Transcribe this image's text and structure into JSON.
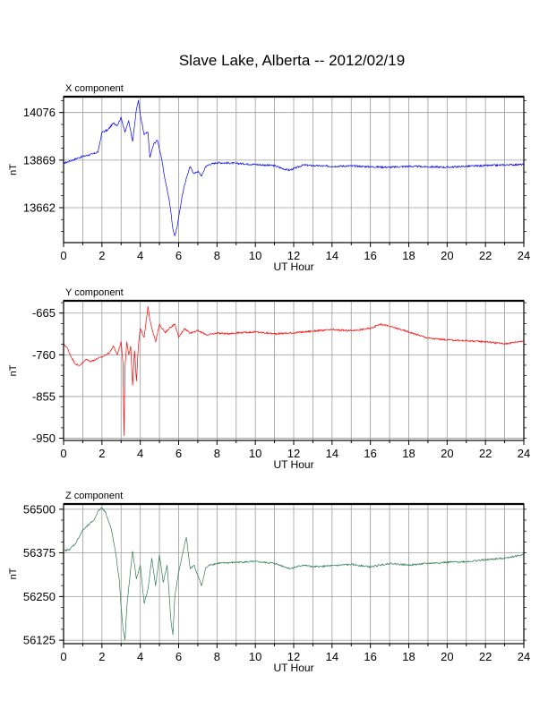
{
  "title": "Slave Lake, Alberta -- 2012/02/19",
  "chart_data": [
    {
      "type": "line",
      "title": "X component",
      "xlabel": "UT Hour",
      "ylabel": "nT",
      "color": "#0000ff",
      "xlim": [
        0,
        24
      ],
      "ylim": [
        13510,
        14145
      ],
      "xticks": [
        "0",
        "2",
        "4",
        "6",
        "8",
        "10",
        "12",
        "14",
        "16",
        "18",
        "20",
        "22",
        "24"
      ],
      "yticks": [
        13662,
        13869,
        14076
      ],
      "grid": true,
      "x": [
        0,
        0.5,
        0.8,
        1.0,
        1.5,
        1.8,
        2.0,
        2.3,
        2.6,
        2.8,
        3.0,
        3.2,
        3.4,
        3.6,
        3.8,
        3.9,
        4.0,
        4.2,
        4.4,
        4.5,
        4.7,
        4.9,
        5.1,
        5.3,
        5.5,
        5.6,
        5.7,
        5.8,
        5.9,
        6.0,
        6.2,
        6.4,
        6.6,
        6.8,
        7.0,
        7.2,
        7.4,
        7.6,
        8.0,
        9,
        10,
        11,
        11.5,
        11.8,
        12.5,
        13,
        14,
        15,
        16,
        17,
        18,
        19,
        20,
        21,
        22,
        23,
        24
      ],
      "y": [
        13855,
        13870,
        13880,
        13885,
        13895,
        13905,
        13990,
        14000,
        14030,
        14020,
        14055,
        13990,
        14040,
        13950,
        14090,
        14130,
        14065,
        13980,
        13990,
        13880,
        13940,
        13955,
        13880,
        13780,
        13700,
        13640,
        13570,
        13540,
        13570,
        13620,
        13720,
        13790,
        13840,
        13810,
        13820,
        13800,
        13840,
        13850,
        13858,
        13855,
        13850,
        13845,
        13830,
        13825,
        13848,
        13845,
        13842,
        13844,
        13840,
        13838,
        13842,
        13840,
        13838,
        13842,
        13845,
        13848,
        13850
      ]
    },
    {
      "type": "line",
      "title": "Y component",
      "xlabel": "UT Hour",
      "ylabel": "nT",
      "color": "#ff0000",
      "xlim": [
        0,
        24
      ],
      "ylim": [
        -955,
        -637
      ],
      "xticks": [
        "0",
        "2",
        "4",
        "6",
        "8",
        "10",
        "12",
        "14",
        "16",
        "18",
        "20",
        "22",
        "24"
      ],
      "yticks": [
        -950,
        -855,
        -760,
        -665
      ],
      "grid": true,
      "x": [
        0,
        0.2,
        0.4,
        0.6,
        0.8,
        1.0,
        1.2,
        1.4,
        1.6,
        1.8,
        2.0,
        2.2,
        2.4,
        2.6,
        2.8,
        3.0,
        3.1,
        3.15,
        3.2,
        3.3,
        3.4,
        3.5,
        3.6,
        3.7,
        3.8,
        3.9,
        4.0,
        4.2,
        4.4,
        4.5,
        4.6,
        4.8,
        5.0,
        5.3,
        5.5,
        5.8,
        6.0,
        6.3,
        6.6,
        7.0,
        7.5,
        8.0,
        8.5,
        9,
        10,
        11,
        12,
        13,
        14,
        15,
        16,
        16.5,
        17,
        18,
        19,
        20,
        21,
        22,
        23,
        24
      ],
      "y": [
        -735,
        -745,
        -765,
        -780,
        -785,
        -778,
        -770,
        -775,
        -772,
        -768,
        -765,
        -760,
        -755,
        -740,
        -760,
        -730,
        -780,
        -945,
        -790,
        -730,
        -760,
        -740,
        -830,
        -750,
        -820,
        -740,
        -700,
        -720,
        -650,
        -680,
        -700,
        -730,
        -690,
        -710,
        -700,
        -690,
        -720,
        -700,
        -710,
        -705,
        -715,
        -710,
        -712,
        -710,
        -708,
        -712,
        -710,
        -706,
        -703,
        -705,
        -700,
        -690,
        -695,
        -708,
        -722,
        -726,
        -728,
        -730,
        -735,
        -728
      ]
    },
    {
      "type": "line",
      "title": "Z component",
      "xlabel": "UT Hour",
      "ylabel": "nT",
      "color": "#2e7d4f",
      "xlim": [
        0,
        24
      ],
      "ylim": [
        56115,
        56515
      ],
      "xticks": [
        "0",
        "2",
        "4",
        "6",
        "8",
        "10",
        "12",
        "14",
        "16",
        "18",
        "20",
        "22",
        "24"
      ],
      "yticks": [
        56125,
        56250,
        56375,
        56500
      ],
      "grid": true,
      "x": [
        0,
        0.3,
        0.6,
        1.0,
        1.3,
        1.6,
        1.8,
        2.0,
        2.2,
        2.5,
        2.7,
        2.9,
        3.0,
        3.1,
        3.2,
        3.3,
        3.5,
        3.6,
        3.8,
        4.0,
        4.2,
        4.4,
        4.6,
        4.8,
        5.0,
        5.2,
        5.4,
        5.6,
        5.7,
        5.8,
        6.0,
        6.2,
        6.4,
        6.6,
        6.8,
        7.0,
        7.2,
        7.4,
        7.6,
        8.0,
        9,
        10,
        11,
        11.8,
        12.5,
        13,
        14,
        15,
        16,
        17,
        18,
        19,
        20,
        21,
        22,
        23,
        23.5,
        24
      ],
      "y": [
        56380,
        56385,
        56400,
        56440,
        56455,
        56470,
        56495,
        56505,
        56490,
        56440,
        56380,
        56300,
        56220,
        56160,
        56125,
        56220,
        56330,
        56380,
        56300,
        56340,
        56230,
        56270,
        56360,
        56280,
        56370,
        56290,
        56340,
        56180,
        56140,
        56250,
        56320,
        56370,
        56420,
        56330,
        56340,
        56310,
        56280,
        56330,
        56340,
        56345,
        56348,
        56350,
        56345,
        56330,
        56340,
        56335,
        56338,
        56342,
        56335,
        56345,
        56340,
        56345,
        56348,
        56350,
        56355,
        56360,
        56365,
        56370
      ]
    }
  ]
}
